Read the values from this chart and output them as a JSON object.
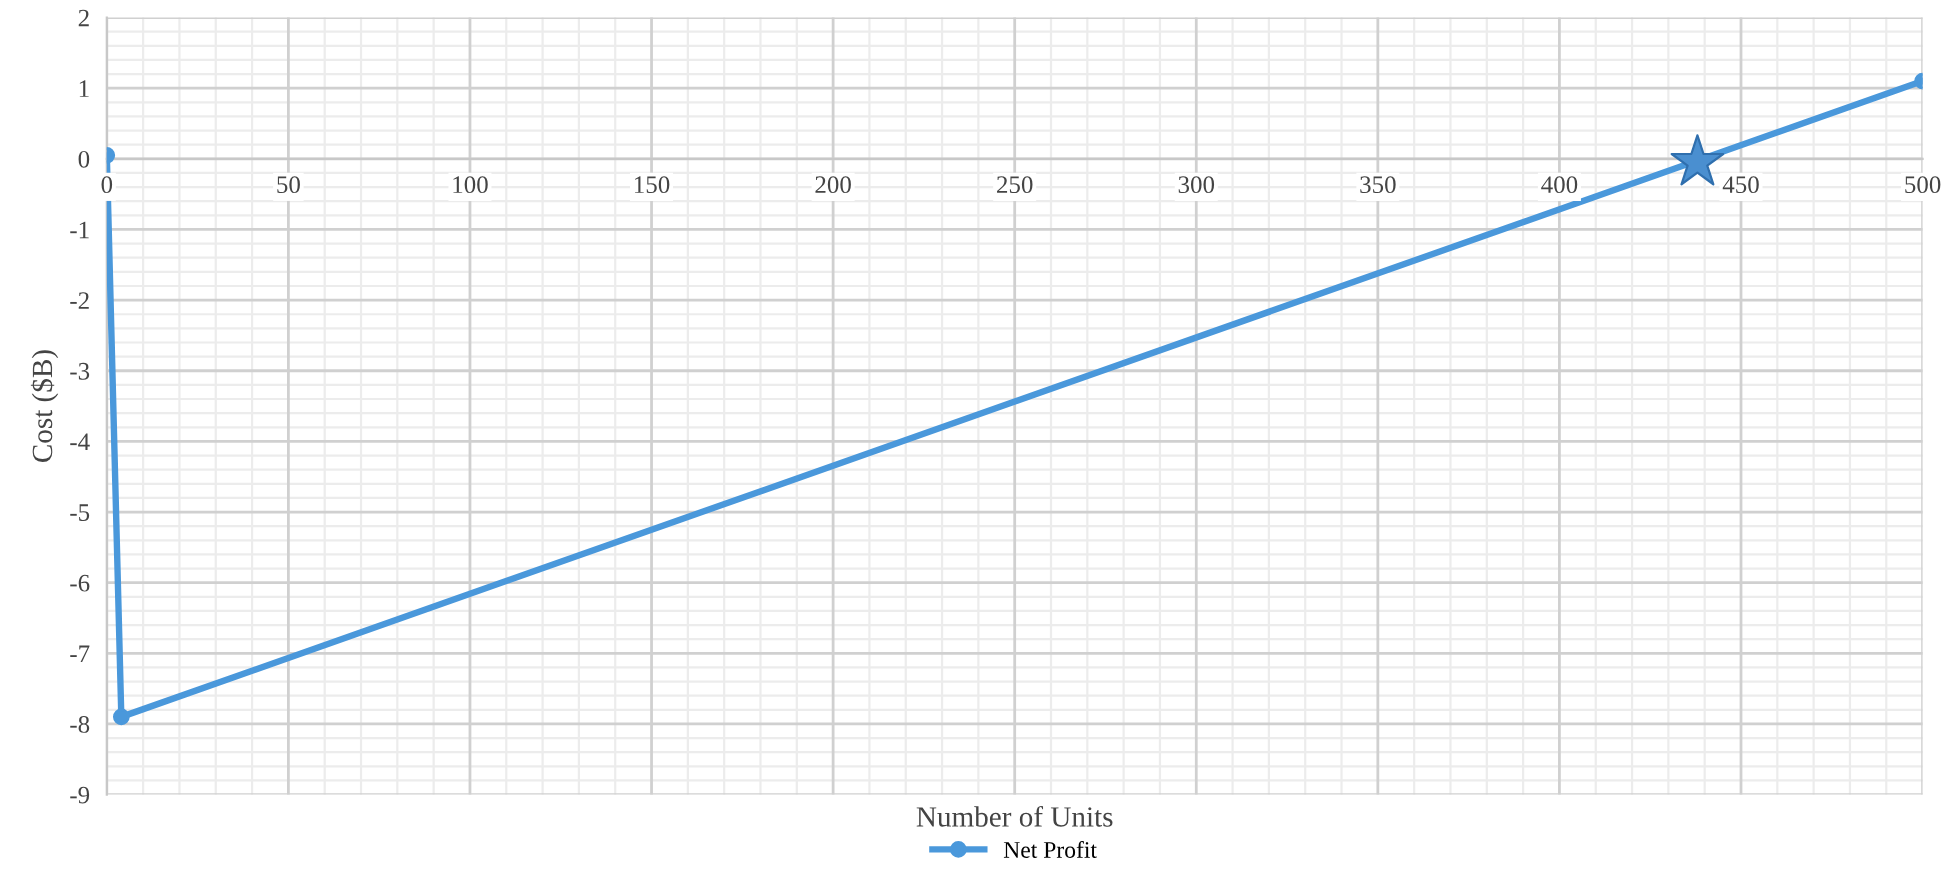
{
  "chart_data": {
    "type": "line",
    "xlabel": "Number of Units",
    "ylabel": "Cost ($B)",
    "xlim": [
      0,
      500
    ],
    "xticks": [
      0,
      50,
      100,
      150,
      200,
      250,
      300,
      350,
      400,
      450,
      500
    ],
    "ylim": [
      -9,
      2
    ],
    "yticks": [
      -9,
      -8,
      -7,
      -6,
      -5,
      -4,
      -3,
      -2,
      -1,
      0,
      1,
      2
    ],
    "grid": true,
    "legend": "bottom",
    "marker": "circle",
    "line_style": "solid",
    "series": [
      {
        "name": "Net Profit",
        "color": "#4a98db",
        "x": [
          0,
          4,
          500
        ],
        "values": [
          0.05,
          -7.9,
          1.1
        ]
      },
      {
        "type": "scatter",
        "marker": "star",
        "color": "#4a8fd0",
        "x": [
          438
        ],
        "values": [
          -0.05
        ]
      }
    ]
  }
}
